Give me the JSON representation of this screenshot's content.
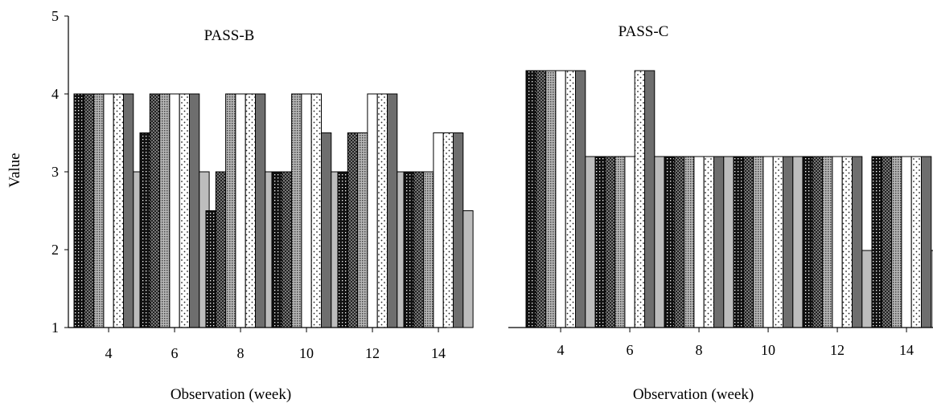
{
  "colors": {
    "background": "#ffffff",
    "axis": "#000000",
    "bar_outline": "#000000"
  },
  "chart_data": [
    {
      "type": "bar",
      "panel": "left",
      "title": "PASS-B",
      "xlabel": "Observation (week)",
      "ylabel": "Value",
      "ylim": [
        1,
        5
      ],
      "yticks": [
        "1",
        "2",
        "3",
        "4",
        "5"
      ],
      "categories": [
        "4",
        "6",
        "8",
        "10",
        "12",
        "14"
      ],
      "grid": false,
      "legend": "none",
      "series": [
        {
          "pattern": "dense-dots-dark",
          "values": [
            4,
            3.5,
            2.5,
            3,
            3,
            3
          ]
        },
        {
          "pattern": "checker-dark",
          "values": [
            4,
            4,
            3,
            3,
            3.5,
            3
          ]
        },
        {
          "pattern": "crosshatch",
          "values": [
            4,
            4,
            4,
            4,
            3.5,
            3
          ]
        },
        {
          "pattern": "white",
          "values": [
            4,
            4,
            4,
            4,
            4,
            3.5
          ]
        },
        {
          "pattern": "sparse-dots",
          "values": [
            4,
            4,
            4,
            4,
            4,
            3.5
          ]
        },
        {
          "pattern": "dark-gray",
          "values": [
            4,
            4,
            4,
            3.5,
            4,
            3.5
          ]
        },
        {
          "pattern": "light-gray",
          "values": [
            3,
            3,
            3,
            3,
            3,
            2.5
          ]
        }
      ]
    },
    {
      "type": "bar",
      "panel": "right",
      "title": "PASS-C",
      "xlabel": "Observation (week)",
      "ylabel": "",
      "ylim": [
        1,
        5
      ],
      "yticks": [],
      "categories": [
        "4",
        "6",
        "8",
        "10",
        "12",
        "14"
      ],
      "grid": false,
      "legend": "none",
      "series": [
        {
          "pattern": "dense-dots-dark",
          "values": [
            4,
            3,
            3,
            3,
            3,
            3
          ]
        },
        {
          "pattern": "checker-dark",
          "values": [
            4,
            3,
            3,
            3,
            3,
            3
          ]
        },
        {
          "pattern": "crosshatch",
          "values": [
            4,
            3,
            3,
            3,
            3,
            3
          ]
        },
        {
          "pattern": "white",
          "values": [
            4,
            3,
            3,
            3,
            3,
            3
          ]
        },
        {
          "pattern": "sparse-dots",
          "values": [
            4,
            4,
            3,
            3,
            3,
            3
          ]
        },
        {
          "pattern": "dark-gray",
          "values": [
            4,
            4,
            3,
            3,
            3,
            3
          ]
        },
        {
          "pattern": "light-gray",
          "values": [
            3,
            3,
            3,
            3,
            2,
            2
          ]
        }
      ]
    }
  ]
}
